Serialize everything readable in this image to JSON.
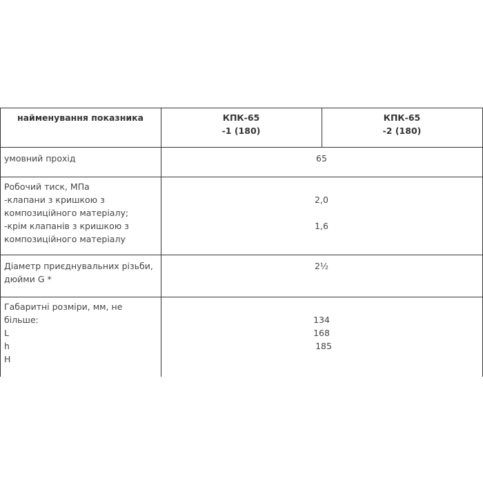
{
  "table": {
    "header": {
      "name": "найменування показника",
      "col1": [
        "КПК-65",
        "-1 (180)"
      ],
      "col2": [
        "КПК-65",
        "-2 (180)"
      ]
    },
    "rows": [
      {
        "label": [
          "умовний прохід"
        ],
        "values": [
          "65"
        ]
      },
      {
        "label": [
          "Робочий тиск, МПа",
          "-клапани з кришкою з",
          "композиційного матеріалу;",
          "-крім клапанів з кришкою з",
          "композиційного матеріалу"
        ],
        "values": [
          "2,0",
          "1,6"
        ]
      },
      {
        "label": [
          "Діаметр приєднувальних різьби,",
          "дюйми G *"
        ],
        "values": [
          "2½"
        ]
      },
      {
        "label": [
          "Габаритні розміри, мм, не",
          "більше:",
          "L",
          "h",
          "H"
        ],
        "values": [
          "134",
          "168",
          "185"
        ]
      }
    ]
  }
}
